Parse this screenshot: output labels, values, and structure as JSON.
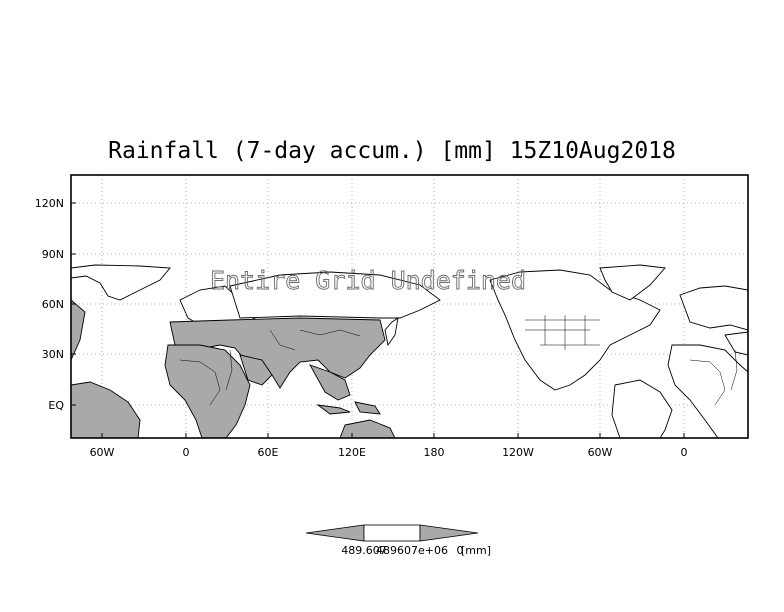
{
  "title": "Rainfall (7-day accum.) [mm] 15Z10Aug2018",
  "overlay_text": "Entire Grid Undefined",
  "lat_labels": [
    "120N",
    "90N",
    "60N",
    "30N",
    "EQ"
  ],
  "lon_labels": [
    "60W",
    "0",
    "60E",
    "120E",
    "180",
    "120W",
    "60W",
    "0"
  ],
  "colorbar": {
    "label_left": "489.607",
    "label_mid": "489607e+06",
    "label_right": "0",
    "unit": "[mm]"
  },
  "colors": {
    "land": "#a9a9a9",
    "outline": "#000000",
    "grid": "#9a9a9a",
    "overlay": "#6b6b6b"
  }
}
